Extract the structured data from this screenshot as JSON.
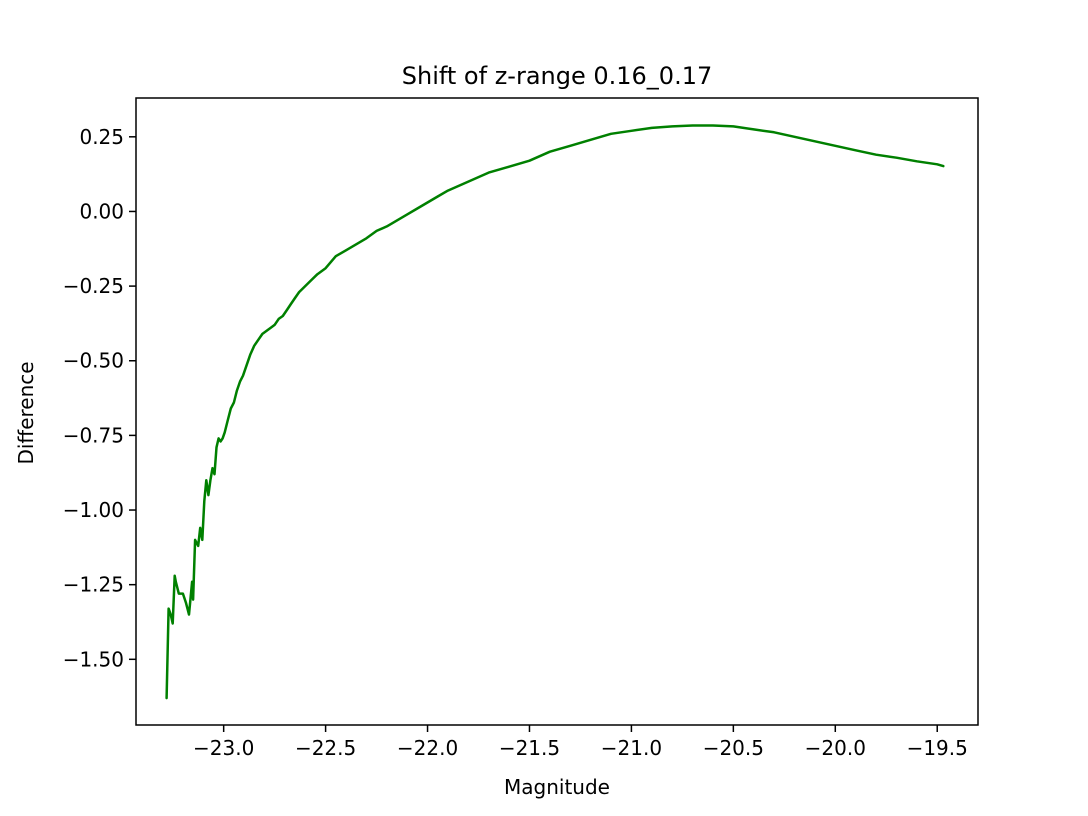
{
  "chart_data": {
    "type": "line",
    "title": "Shift of z-range 0.16_0.17",
    "xlabel": "Magnitude",
    "ylabel": "Difference",
    "xlim": [
      -23.43,
      -19.3
    ],
    "ylim": [
      -1.72,
      0.38
    ],
    "xticks": [
      -23.0,
      -22.5,
      -22.0,
      -21.5,
      -21.0,
      -20.5,
      -20.0,
      -19.5
    ],
    "xtick_labels": [
      "−23.0",
      "−22.5",
      "−22.0",
      "−21.5",
      "−21.0",
      "−20.5",
      "−20.0",
      "−19.5"
    ],
    "yticks": [
      0.25,
      0.0,
      -0.25,
      -0.5,
      -0.75,
      -1.0,
      -1.25,
      -1.5
    ],
    "ytick_labels": [
      "0.25",
      "0.00",
      "−0.25",
      "−0.50",
      "−0.75",
      "−1.00",
      "−1.25",
      "−1.50"
    ],
    "grid": false,
    "series": [
      {
        "color": "#008000",
        "x": [
          -23.28,
          -23.27,
          -23.26,
          -23.25,
          -23.24,
          -23.235,
          -23.22,
          -23.2,
          -23.185,
          -23.17,
          -23.155,
          -23.15,
          -23.14,
          -23.125,
          -23.115,
          -23.105,
          -23.095,
          -23.085,
          -23.075,
          -23.065,
          -23.055,
          -23.045,
          -23.035,
          -23.025,
          -23.015,
          -23.005,
          -22.995,
          -22.98,
          -22.965,
          -22.95,
          -22.935,
          -22.92,
          -22.905,
          -22.89,
          -22.87,
          -22.85,
          -22.83,
          -22.81,
          -22.79,
          -22.77,
          -22.75,
          -22.73,
          -22.71,
          -22.69,
          -22.67,
          -22.65,
          -22.63,
          -22.6,
          -22.57,
          -22.54,
          -22.5,
          -22.45,
          -22.4,
          -22.35,
          -22.3,
          -22.25,
          -22.2,
          -22.15,
          -22.1,
          -22.05,
          -22.0,
          -21.95,
          -21.9,
          -21.8,
          -21.7,
          -21.6,
          -21.5,
          -21.4,
          -21.3,
          -21.2,
          -21.1,
          -21.0,
          -20.9,
          -20.8,
          -20.7,
          -20.6,
          -20.5,
          -20.4,
          -20.3,
          -20.2,
          -20.1,
          -20.0,
          -19.9,
          -19.8,
          -19.7,
          -19.6,
          -19.5,
          -19.47
        ],
        "y": [
          -1.63,
          -1.33,
          -1.35,
          -1.38,
          -1.22,
          -1.24,
          -1.28,
          -1.28,
          -1.31,
          -1.35,
          -1.24,
          -1.3,
          -1.1,
          -1.12,
          -1.06,
          -1.1,
          -0.97,
          -0.9,
          -0.95,
          -0.9,
          -0.86,
          -0.88,
          -0.79,
          -0.76,
          -0.77,
          -0.76,
          -0.74,
          -0.7,
          -0.66,
          -0.64,
          -0.6,
          -0.57,
          -0.55,
          -0.52,
          -0.48,
          -0.45,
          -0.43,
          -0.41,
          -0.4,
          -0.39,
          -0.38,
          -0.36,
          -0.35,
          -0.33,
          -0.31,
          -0.29,
          -0.27,
          -0.25,
          -0.23,
          -0.21,
          -0.19,
          -0.15,
          -0.13,
          -0.11,
          -0.09,
          -0.065,
          -0.05,
          -0.03,
          -0.01,
          0.01,
          0.03,
          0.05,
          0.07,
          0.1,
          0.13,
          0.15,
          0.17,
          0.2,
          0.22,
          0.24,
          0.26,
          0.27,
          0.28,
          0.285,
          0.288,
          0.288,
          0.285,
          0.275,
          0.265,
          0.25,
          0.235,
          0.22,
          0.205,
          0.19,
          0.18,
          0.168,
          0.158,
          0.152
        ]
      }
    ]
  }
}
